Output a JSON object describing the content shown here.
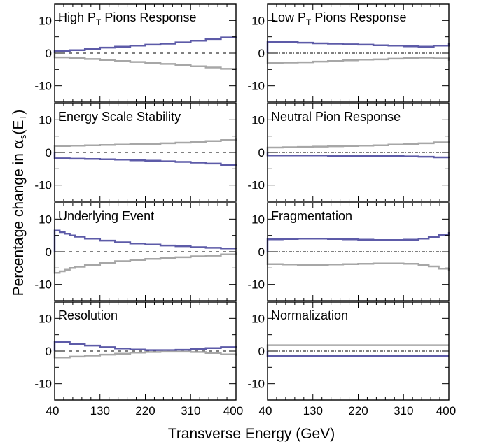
{
  "figure": {
    "xlabel": "Transverse Energy (GeV)",
    "ylabel_main": "Percentage change in ",
    "ylabel_symbol": "α",
    "ylabel_sub": "s",
    "ylabel_paren_open": "(E",
    "ylabel_paren_sub": "T",
    "ylabel_paren_close": ")"
  },
  "colors": {
    "upper_variation": "#5d5ba8",
    "lower_variation": "#a7a7a7",
    "frame": "#000000"
  },
  "chart_data": [
    {
      "type": "line",
      "grid": false,
      "title_parts": [
        "High P",
        "T",
        " Pions Response"
      ],
      "x": [
        40,
        70,
        100,
        130,
        160,
        190,
        220,
        250,
        280,
        310,
        340,
        370,
        400
      ],
      "xticks": [
        "40",
        "130",
        "220",
        "310",
        "400"
      ],
      "yticks": [
        "10",
        "0",
        "-10"
      ],
      "xlim": [
        40,
        400
      ],
      "ylim": [
        -15,
        15
      ],
      "series": [
        {
          "values": [
            0.7,
            0.9,
            1.3,
            1.7,
            2.0,
            2.3,
            2.6,
            2.9,
            3.3,
            3.8,
            4.3,
            4.8,
            5.1
          ]
        },
        {
          "values": [
            -1.3,
            -1.5,
            -1.8,
            -2.1,
            -2.4,
            -2.7,
            -3.0,
            -3.3,
            -3.6,
            -4.0,
            -4.4,
            -4.8,
            -5.1
          ]
        }
      ]
    },
    {
      "type": "line",
      "grid": false,
      "title_parts": [
        "Low P",
        "T",
        " Pions Response"
      ],
      "x": [
        40,
        70,
        100,
        130,
        160,
        190,
        220,
        250,
        280,
        310,
        340,
        370,
        400
      ],
      "xticks": [
        "40",
        "130",
        "220",
        "310",
        "400"
      ],
      "yticks": [
        "10",
        "0",
        "-10"
      ],
      "xlim": [
        40,
        400
      ],
      "ylim": [
        -15,
        15
      ],
      "series": [
        {
          "values": [
            3.5,
            3.4,
            3.2,
            3.0,
            2.9,
            2.7,
            2.6,
            2.4,
            2.3,
            2.1,
            2.0,
            2.3,
            3.0
          ]
        },
        {
          "values": [
            -3.0,
            -2.9,
            -2.8,
            -2.6,
            -2.4,
            -2.2,
            -2.0,
            -1.9,
            -1.7,
            -1.5,
            -1.4,
            -1.6,
            -2.3
          ]
        }
      ]
    },
    {
      "type": "line",
      "grid": false,
      "title_parts": [
        "Energy Scale Stability",
        "",
        ""
      ],
      "x": [
        40,
        70,
        100,
        130,
        160,
        190,
        220,
        250,
        280,
        310,
        340,
        370,
        400
      ],
      "xticks": [
        "40",
        "130",
        "220",
        "310",
        "400"
      ],
      "yticks": [
        "10",
        "0",
        "-10"
      ],
      "xlim": [
        40,
        400
      ],
      "ylim": [
        -15,
        15
      ],
      "series": [
        {
          "values": [
            -1.8,
            -1.9,
            -2.0,
            -2.1,
            -2.2,
            -2.4,
            -2.5,
            -2.7,
            -2.9,
            -3.1,
            -3.4,
            -3.8,
            -4.2
          ]
        },
        {
          "values": [
            2.0,
            2.1,
            2.2,
            2.3,
            2.4,
            2.5,
            2.6,
            2.8,
            3.0,
            3.2,
            3.5,
            3.8,
            4.2
          ]
        }
      ]
    },
    {
      "type": "line",
      "grid": false,
      "title_parts": [
        "Neutral Pion  Response",
        "",
        ""
      ],
      "x": [
        40,
        70,
        100,
        130,
        160,
        190,
        220,
        250,
        280,
        310,
        340,
        370,
        400
      ],
      "xticks": [
        "40",
        "130",
        "220",
        "310",
        "400"
      ],
      "yticks": [
        "10",
        "0",
        "-10"
      ],
      "xlim": [
        40,
        400
      ],
      "ylim": [
        -15,
        15
      ],
      "series": [
        {
          "values": [
            -0.9,
            -0.9,
            -0.9,
            -0.9,
            -1.0,
            -1.0,
            -1.0,
            -1.1,
            -1.1,
            -1.2,
            -1.3,
            -1.5,
            -1.7
          ]
        },
        {
          "values": [
            1.5,
            1.6,
            1.7,
            1.8,
            1.9,
            2.0,
            2.1,
            2.2,
            2.4,
            2.6,
            2.8,
            3.1,
            3.4
          ]
        }
      ]
    },
    {
      "type": "line",
      "grid": false,
      "title_parts": [
        "Underlying Event",
        "",
        ""
      ],
      "x": [
        40,
        50,
        60,
        70,
        80,
        100,
        130,
        160,
        190,
        220,
        250,
        280,
        310,
        340,
        370,
        400
      ],
      "xticks": [
        "40",
        "130",
        "220",
        "310",
        "400"
      ],
      "yticks": [
        "10",
        "0",
        "-10"
      ],
      "xlim": [
        40,
        400
      ],
      "ylim": [
        -15,
        15
      ],
      "series": [
        {
          "values": [
            6.5,
            6.0,
            5.5,
            5.0,
            4.6,
            4.0,
            3.4,
            2.9,
            2.5,
            2.2,
            1.9,
            1.7,
            1.4,
            1.2,
            1.0,
            0.9
          ]
        },
        {
          "values": [
            -6.5,
            -6.0,
            -5.5,
            -5.0,
            -4.6,
            -4.0,
            -3.4,
            -2.9,
            -2.5,
            -2.2,
            -1.9,
            -1.7,
            -1.4,
            -1.2,
            -0.8,
            -0.3
          ]
        }
      ]
    },
    {
      "type": "line",
      "grid": false,
      "title_parts": [
        "Fragmentation",
        "",
        ""
      ],
      "x": [
        40,
        70,
        100,
        130,
        160,
        190,
        220,
        250,
        280,
        310,
        340,
        360,
        380,
        400
      ],
      "xticks": [
        "40",
        "130",
        "220",
        "310",
        "400"
      ],
      "yticks": [
        "10",
        "0",
        "-10"
      ],
      "xlim": [
        40,
        400
      ],
      "ylim": [
        -15,
        15
      ],
      "series": [
        {
          "values": [
            3.8,
            3.9,
            4.0,
            4.0,
            3.9,
            3.8,
            3.7,
            3.6,
            3.6,
            3.7,
            4.0,
            4.5,
            5.2,
            6.0
          ]
        },
        {
          "values": [
            -3.8,
            -3.9,
            -4.0,
            -4.0,
            -3.9,
            -3.8,
            -3.7,
            -3.6,
            -3.6,
            -3.7,
            -4.0,
            -4.5,
            -5.2,
            -6.0
          ]
        }
      ]
    },
    {
      "type": "line",
      "grid": false,
      "title_parts": [
        "Resolution",
        "",
        ""
      ],
      "x": [
        40,
        70,
        100,
        130,
        160,
        190,
        220,
        250,
        280,
        310,
        340,
        370,
        400
      ],
      "xticks": [
        "40",
        "130",
        "220",
        "310",
        "400"
      ],
      "yticks": [
        "10",
        "0",
        "-10"
      ],
      "xlim": [
        40,
        400
      ],
      "ylim": [
        -15,
        15
      ],
      "series": [
        {
          "values": [
            2.8,
            2.2,
            1.7,
            1.2,
            0.8,
            0.5,
            0.3,
            0.3,
            0.4,
            0.6,
            0.9,
            1.2,
            1.5
          ]
        },
        {
          "values": [
            -2.0,
            -1.7,
            -1.4,
            -1.1,
            -0.8,
            -0.5,
            -0.3,
            -0.2,
            -0.2,
            -0.3,
            -0.6,
            -1.0,
            -1.4
          ]
        }
      ]
    },
    {
      "type": "line",
      "grid": false,
      "title_parts": [
        "Normalization",
        "",
        ""
      ],
      "x": [
        40,
        400
      ],
      "xticks": [
        "40",
        "130",
        "220",
        "310",
        "400"
      ],
      "yticks": [
        "10",
        "0",
        "-10"
      ],
      "xlim": [
        40,
        400
      ],
      "ylim": [
        -15,
        15
      ],
      "series": [
        {
          "values": [
            -1.5,
            -1.5
          ]
        },
        {
          "values": [
            1.8,
            1.8
          ]
        }
      ]
    }
  ]
}
